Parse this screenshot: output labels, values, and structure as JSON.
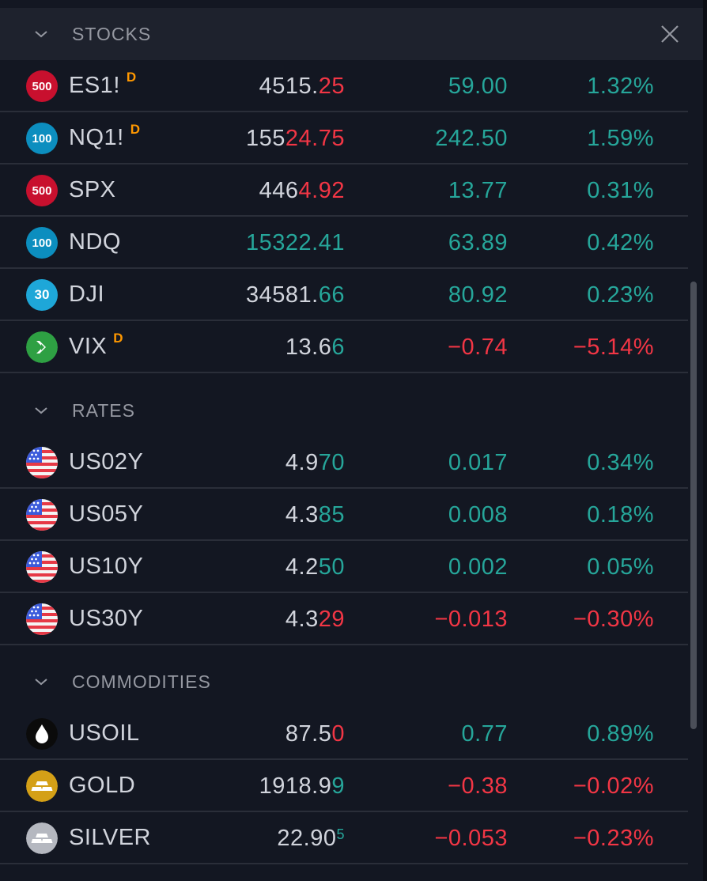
{
  "sections": {
    "stocks": {
      "title": "STOCKS"
    },
    "rates": {
      "title": "RATES"
    },
    "commodities": {
      "title": "COMMODITIES"
    }
  },
  "rows": [
    {
      "symbol": "ES1!",
      "delay": "D",
      "icon": {
        "name": "sp500-icon",
        "text": "500",
        "color": "#c8102e"
      },
      "last_main": "4515.",
      "last_tail": "25",
      "last_tail_dir": "down",
      "chg": "59.00",
      "chg_dir": "up",
      "pct": "1.32%",
      "pct_dir": "up"
    },
    {
      "symbol": "NQ1!",
      "delay": "D",
      "icon": {
        "name": "nasdaq100-icon",
        "text": "100",
        "color": "#0c8ebf"
      },
      "last_main": "155",
      "last_tail": "24.75",
      "last_tail_dir": "down",
      "chg": "242.50",
      "chg_dir": "up",
      "pct": "1.59%",
      "pct_dir": "up"
    },
    {
      "symbol": "SPX",
      "delay": "",
      "icon": {
        "name": "sp500-icon",
        "text": "500",
        "color": "#c8102e"
      },
      "last_main": "446",
      "last_tail": "4.92",
      "last_tail_dir": "down",
      "chg": "13.77",
      "chg_dir": "up",
      "pct": "0.31%",
      "pct_dir": "up"
    },
    {
      "symbol": "NDQ",
      "delay": "",
      "icon": {
        "name": "nasdaq100-icon",
        "text": "100",
        "color": "#0c8ebf"
      },
      "last_main": "",
      "last_tail": "15322.41",
      "last_tail_dir": "up",
      "chg": "63.89",
      "chg_dir": "up",
      "pct": "0.42%",
      "pct_dir": "up"
    },
    {
      "symbol": "DJI",
      "delay": "",
      "icon": {
        "name": "dow30-icon",
        "text": "30",
        "color": "#1ea7d8"
      },
      "last_main": "34581.",
      "last_tail": "66",
      "last_tail_dir": "up",
      "chg": "80.92",
      "chg_dir": "up",
      "pct": "0.23%",
      "pct_dir": "up"
    },
    {
      "symbol": "VIX",
      "delay": "D",
      "icon": {
        "name": "vix-icon",
        "text": "",
        "color": "#2ea043"
      },
      "last_main": "13.6",
      "last_tail": "6",
      "last_tail_dir": "up",
      "chg": "−0.74",
      "chg_dir": "down",
      "pct": "−5.14%",
      "pct_dir": "down"
    },
    {
      "symbol": "US02Y",
      "delay": "",
      "icon": {
        "name": "us-flag-icon"
      },
      "last_main": "4.9",
      "last_tail": "70",
      "last_tail_dir": "up",
      "chg": "0.017",
      "chg_dir": "up",
      "pct": "0.34%",
      "pct_dir": "up"
    },
    {
      "symbol": "US05Y",
      "delay": "",
      "icon": {
        "name": "us-flag-icon"
      },
      "last_main": "4.3",
      "last_tail": "85",
      "last_tail_dir": "up",
      "chg": "0.008",
      "chg_dir": "up",
      "pct": "0.18%",
      "pct_dir": "up"
    },
    {
      "symbol": "US10Y",
      "delay": "",
      "icon": {
        "name": "us-flag-icon"
      },
      "last_main": "4.2",
      "last_tail": "50",
      "last_tail_dir": "up",
      "chg": "0.002",
      "chg_dir": "up",
      "pct": "0.05%",
      "pct_dir": "up"
    },
    {
      "symbol": "US30Y",
      "delay": "",
      "icon": {
        "name": "us-flag-icon"
      },
      "last_main": "4.3",
      "last_tail": "29",
      "last_tail_dir": "down",
      "chg": "−0.013",
      "chg_dir": "down",
      "pct": "−0.30%",
      "pct_dir": "down"
    },
    {
      "symbol": "USOIL",
      "delay": "",
      "icon": {
        "name": "oil-drop-icon"
      },
      "last_main": "87.5",
      "last_tail": "0",
      "last_tail_dir": "down",
      "chg": "0.77",
      "chg_dir": "up",
      "pct": "0.89%",
      "pct_dir": "up"
    },
    {
      "symbol": "GOLD",
      "delay": "",
      "icon": {
        "name": "gold-bars-icon",
        "color": "#d4a017"
      },
      "last_main": "1918.9",
      "last_tail": "9",
      "last_tail_dir": "up",
      "chg": "−0.38",
      "chg_dir": "down",
      "pct": "−0.02%",
      "pct_dir": "down"
    },
    {
      "symbol": "SILVER",
      "delay": "",
      "icon": {
        "name": "silver-bars-icon",
        "color": "#b5b8c0"
      },
      "last_main": "22.90",
      "last_tail": "",
      "last_tail_dir": "up",
      "last_sup": "5",
      "chg": "−0.053",
      "chg_dir": "down",
      "pct": "−0.23%",
      "pct_dir": "down"
    }
  ]
}
